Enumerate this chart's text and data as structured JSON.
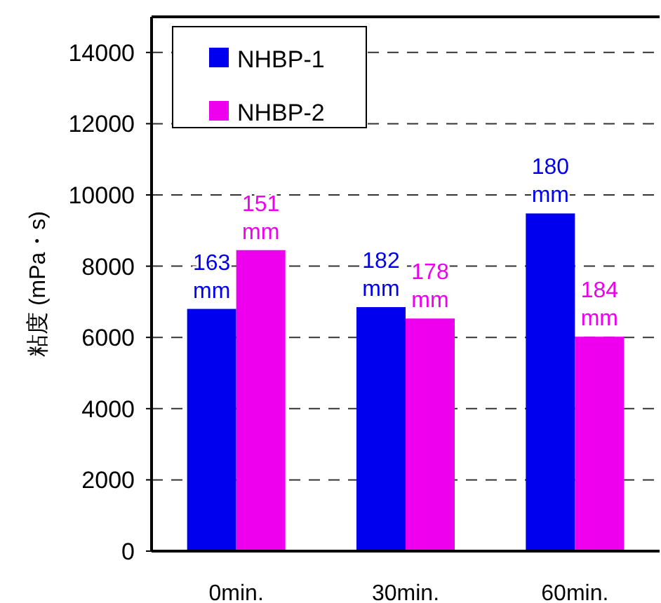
{
  "chart_data": {
    "type": "bar",
    "ylabel": "粘度 (mPa・s)",
    "categories": [
      "0min.",
      "30min.",
      "60min."
    ],
    "series": [
      {
        "name": "NHBP-1",
        "color": "#0000ee",
        "values": [
          6800,
          6850,
          9480
        ]
      },
      {
        "name": "NHBP-2",
        "color": "#ee00ee",
        "values": [
          8450,
          6530,
          6020
        ]
      }
    ],
    "annotations": [
      "163\nmm",
      "182\nmm",
      "180\nmm",
      "151\nmm",
      "178\nmm",
      "184\nmm"
    ],
    "ylim": [
      0,
      15000
    ],
    "yticks": [
      0,
      2000,
      4000,
      6000,
      8000,
      10000,
      12000,
      14000
    ],
    "grid": "y",
    "legend": "top left"
  }
}
